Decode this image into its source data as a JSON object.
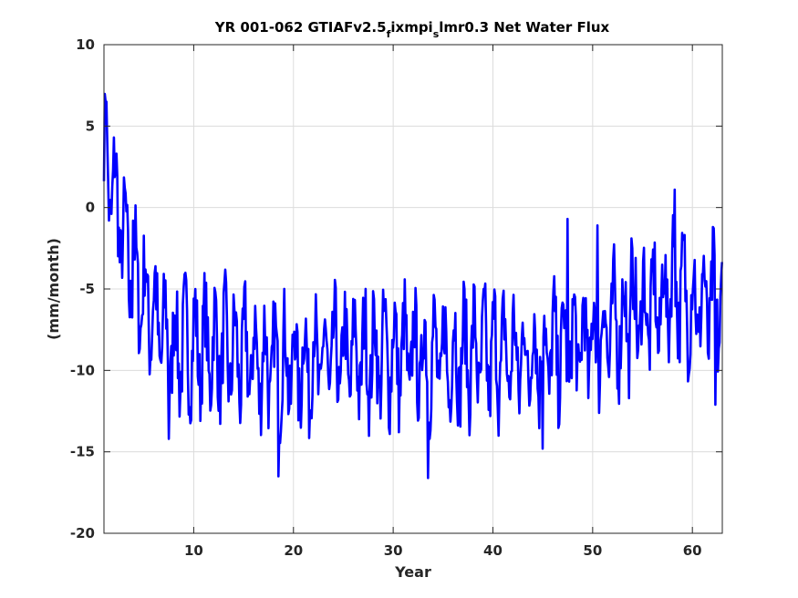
{
  "chart_data": {
    "type": "line",
    "title": {
      "prefix": "YR 001-062 GTIAFv2.5",
      "sub1": "f",
      "mid": "ixmpi",
      "sub2": "s",
      "suffix": "lmr0.3 Net Water Flux"
    },
    "xlabel": "Year",
    "ylabel": "(mm/month)",
    "xlim": [
      1,
      63
    ],
    "ylim": [
      -20,
      10
    ],
    "xticks": [
      10,
      20,
      30,
      40,
      50,
      60
    ],
    "yticks": [
      -20,
      -15,
      -10,
      -5,
      0,
      5,
      10
    ],
    "grid": true,
    "series": [
      {
        "color": "#0000ff",
        "sampling": "monthly",
        "x_start": 1.0,
        "x_step": 0.0833,
        "trend": [
          [
            1.0,
            2.5
          ],
          [
            2.0,
            1.0
          ],
          [
            3.0,
            -2.0
          ],
          [
            4.0,
            -4.5
          ],
          [
            5.0,
            -5.5
          ],
          [
            6.0,
            -6.5
          ],
          [
            7.0,
            -8.0
          ],
          [
            8.0,
            -8.6
          ],
          [
            10.0,
            -8.5
          ],
          [
            14.0,
            -9.0
          ],
          [
            18.0,
            -9.8
          ],
          [
            22.0,
            -9.5
          ],
          [
            26.0,
            -9.2
          ],
          [
            30.0,
            -9.0
          ],
          [
            34.0,
            -9.4
          ],
          [
            38.0,
            -9.0
          ],
          [
            42.0,
            -9.2
          ],
          [
            46.0,
            -8.8
          ],
          [
            50.0,
            -8.2
          ],
          [
            54.0,
            -6.5
          ],
          [
            57.0,
            -6.0
          ],
          [
            58.0,
            -4.5
          ],
          [
            60.0,
            -6.0
          ],
          [
            63.0,
            -6.0
          ]
        ],
        "annual_amplitude": 2.6,
        "noise_amplitude": 1.6,
        "peaks": [
          [
            1.2,
            6.5
          ],
          [
            2.0,
            4.3
          ],
          [
            3.9,
            -0.8
          ],
          [
            7.5,
            -14.2
          ],
          [
            18.5,
            -16.5
          ],
          [
            33.5,
            -16.6
          ],
          [
            45.0,
            -14.8
          ],
          [
            47.5,
            -0.7
          ],
          [
            50.5,
            -1.1
          ],
          [
            53.9,
            -1.9
          ],
          [
            58.2,
            1.1
          ],
          [
            62.3,
            -12.1
          ]
        ]
      }
    ]
  }
}
